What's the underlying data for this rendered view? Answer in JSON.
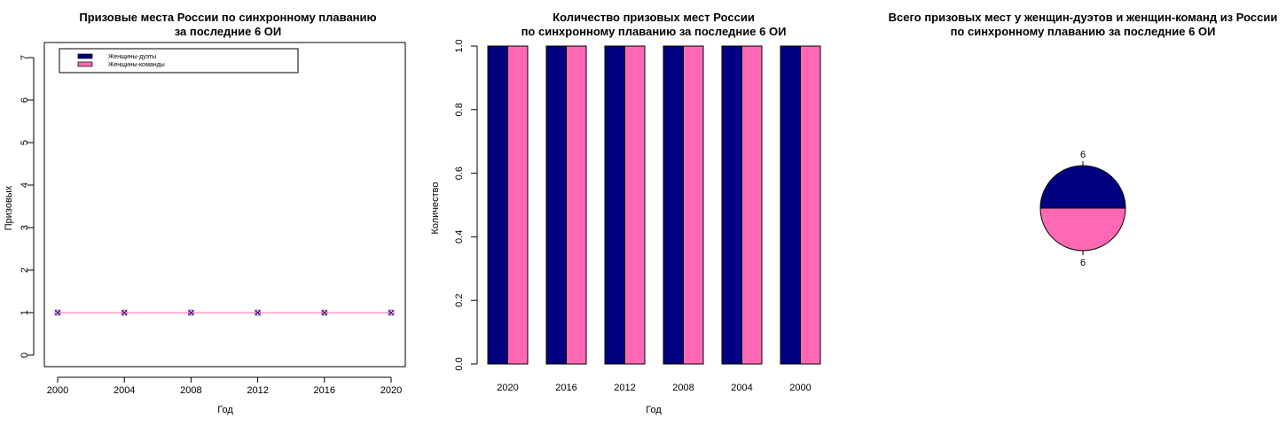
{
  "colors": {
    "duet": "#000080",
    "team": "#FF69B4"
  },
  "chart_data": [
    {
      "type": "line",
      "title": [
        "Призовые места России по синхронному плаванию",
        "за последние 6 ОИ"
      ],
      "xlabel": "Год",
      "ylabel": "Призовых",
      "x": [
        2000,
        2004,
        2008,
        2012,
        2016,
        2020
      ],
      "xticks": [
        "2000",
        "2004",
        "2008",
        "2012",
        "2016",
        "2020"
      ],
      "ylim": [
        0,
        7
      ],
      "yticks": [
        "0",
        "1",
        "2",
        "3",
        "4",
        "5",
        "6",
        "7"
      ],
      "legend_position": "top-left",
      "series": [
        {
          "name": "Женщины-дуэты",
          "values": [
            1,
            1,
            1,
            1,
            1,
            1
          ]
        },
        {
          "name": "Женщины-команды",
          "values": [
            1,
            1,
            1,
            1,
            1,
            1
          ]
        }
      ]
    },
    {
      "type": "bar",
      "title": [
        "Количество призовых мест России",
        "по синхронному плаванию за последние 6 ОИ"
      ],
      "xlabel": "Год",
      "ylabel": "Количество",
      "categories": [
        "2020",
        "2016",
        "2012",
        "2008",
        "2004",
        "2000"
      ],
      "ylim": [
        0,
        1
      ],
      "yticks": [
        "0.0",
        "0.2",
        "0.4",
        "0.6",
        "0.8",
        "1.0"
      ],
      "series": [
        {
          "values": [
            1,
            1,
            1,
            1,
            1,
            1
          ]
        },
        {
          "values": [
            1,
            1,
            1,
            1,
            1,
            1
          ]
        }
      ]
    },
    {
      "type": "pie",
      "title": [
        "Всего призовых мест у женщин-дуэтов и женщин-команд  из России",
        "по синхронному плаванию за последние 6 ОИ"
      ],
      "labels": [
        "6",
        "6"
      ],
      "values": [
        6,
        6
      ]
    }
  ]
}
